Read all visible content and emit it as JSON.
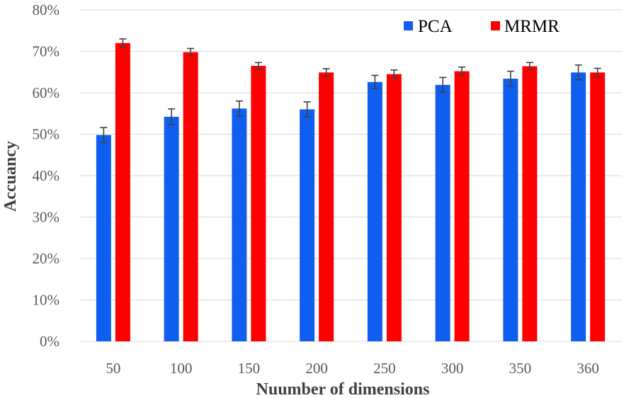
{
  "chart_data": {
    "type": "bar",
    "title": "",
    "xlabel": "Nuumber of dimensions",
    "ylabel": "Accuancy",
    "categories": [
      "50",
      "100",
      "150",
      "200",
      "250",
      "300",
      "350",
      "360"
    ],
    "ylim": [
      0,
      80
    ],
    "yticks": [
      "0%",
      "10%",
      "20%",
      "30%",
      "40%",
      "50%",
      "60%",
      "70%",
      "80%"
    ],
    "grid": true,
    "legend_position": "top-right",
    "series": [
      {
        "name": "PCA",
        "color": "#0f5ef0",
        "values": [
          49.8,
          54.2,
          56.2,
          56.0,
          62.6,
          61.9,
          63.4,
          64.9
        ],
        "errors": [
          1.8,
          1.9,
          1.8,
          1.8,
          1.6,
          1.8,
          1.8,
          1.8
        ]
      },
      {
        "name": "MRMR",
        "color": "#ff0000",
        "values": [
          72.0,
          69.8,
          66.5,
          64.9,
          64.5,
          65.2,
          66.4,
          64.9
        ],
        "errors": [
          1.0,
          0.9,
          0.8,
          0.9,
          1.0,
          1.0,
          0.9,
          1.0
        ]
      }
    ]
  }
}
